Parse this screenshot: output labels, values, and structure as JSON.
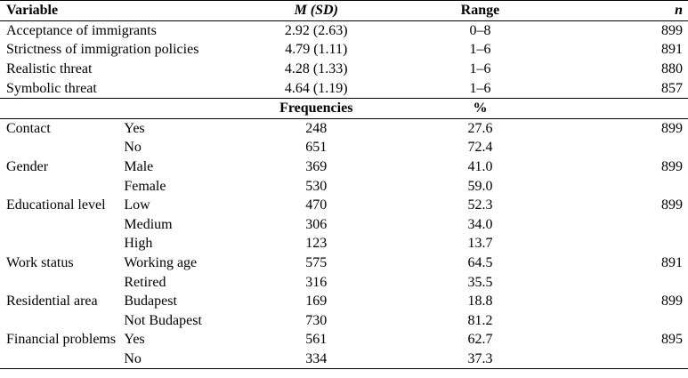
{
  "header": {
    "variable": "Variable",
    "msd": "M (SD)",
    "range": "Range",
    "n": "n"
  },
  "continuous": [
    {
      "label": "Acceptance of immigrants",
      "msd": "2.92 (2.63)",
      "range": "0–8",
      "n": "899"
    },
    {
      "label": "Strictness of immigration policies",
      "msd": "4.79 (1.11)",
      "range": "1–6",
      "n": "891"
    },
    {
      "label": "Realistic threat",
      "msd": "4.28 (1.33)",
      "range": "1–6",
      "n": "880"
    },
    {
      "label": "Symbolic threat",
      "msd": "4.64 (1.19)",
      "range": "1–6",
      "n": "857"
    }
  ],
  "subheader": {
    "frequencies": "Frequencies",
    "percent": "%"
  },
  "categorical": [
    {
      "variable": "Contact",
      "category": "Yes",
      "freq": "248",
      "pct": "27.6",
      "n": "899"
    },
    {
      "variable": "",
      "category": "No",
      "freq": "651",
      "pct": "72.4",
      "n": ""
    },
    {
      "variable": "Gender",
      "category": "Male",
      "freq": "369",
      "pct": "41.0",
      "n": "899"
    },
    {
      "variable": "",
      "category": "Female",
      "freq": "530",
      "pct": "59.0",
      "n": ""
    },
    {
      "variable": "Educational level",
      "category": "Low",
      "freq": "470",
      "pct": "52.3",
      "n": "899"
    },
    {
      "variable": "",
      "category": "Medium",
      "freq": "306",
      "pct": "34.0",
      "n": ""
    },
    {
      "variable": "",
      "category": "High",
      "freq": "123",
      "pct": "13.7",
      "n": ""
    },
    {
      "variable": "Work status",
      "category": "Working age",
      "freq": "575",
      "pct": "64.5",
      "n": "891"
    },
    {
      "variable": "",
      "category": "Retired",
      "freq": "316",
      "pct": "35.5",
      "n": ""
    },
    {
      "variable": "Residential area",
      "category": "Budapest",
      "freq": "169",
      "pct": "18.8",
      "n": "899"
    },
    {
      "variable": "",
      "category": "Not Budapest",
      "freq": "730",
      "pct": "81.2",
      "n": ""
    },
    {
      "variable": "Financial problems",
      "category": "Yes",
      "freq": "561",
      "pct": "62.7",
      "n": "895"
    },
    {
      "variable": "",
      "category": "No",
      "freq": "334",
      "pct": "37.3",
      "n": ""
    }
  ]
}
